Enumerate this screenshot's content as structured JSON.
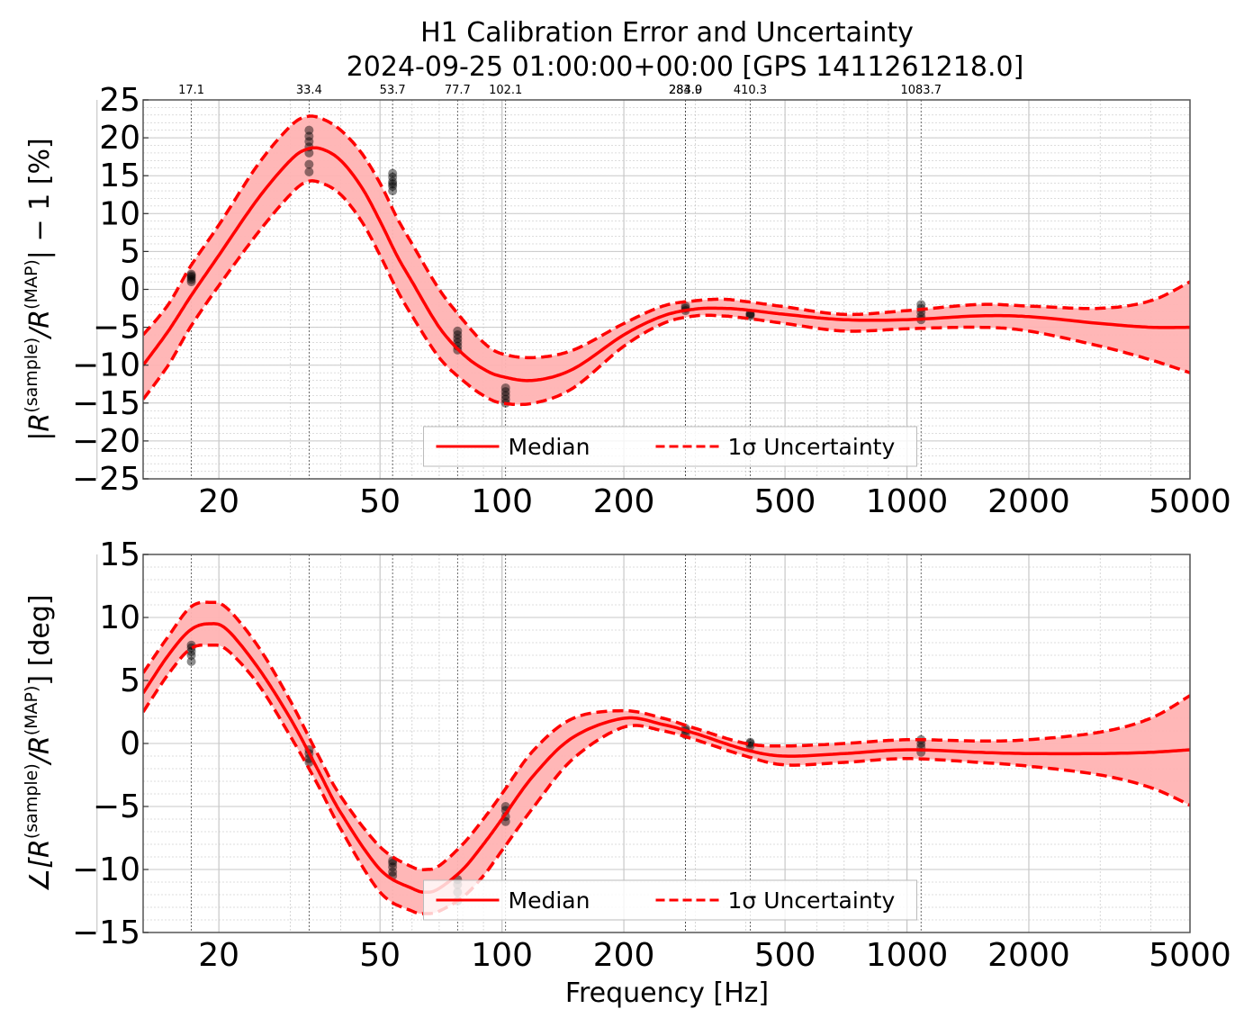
{
  "figure": {
    "title_line1": "H1 Calibration Error and Uncertainty",
    "title_line2": "2024-09-25 01:00:00+00:00 [GPS 1411261218.0]",
    "xlabel": "Frequency [Hz]"
  },
  "colors": {
    "median": "#ff0000",
    "band": "#ffb3b3",
    "points": "#000000",
    "grid": "#bbbbbb"
  },
  "chart_data": [
    {
      "type": "line",
      "panel": "magnitude",
      "ylabel_parts": [
        "|R",
        "(sample)",
        "/R",
        "(MAP)",
        "| − 1 [%]"
      ],
      "xscale": "log",
      "xlim": [
        13,
        5000
      ],
      "ylim": [
        -25,
        25
      ],
      "x_ticks": [
        "20",
        "50",
        "100",
        "200",
        "500",
        "1000",
        "2000",
        "5000"
      ],
      "x_tick_values": [
        20,
        50,
        100,
        200,
        500,
        1000,
        2000,
        5000
      ],
      "y_ticks": [
        -25,
        -20,
        -15,
        -10,
        -5,
        0,
        5,
        10,
        15,
        20,
        25
      ],
      "y_tick_labels": [
        "−25",
        "−20",
        "−15",
        "−10",
        "−5",
        "0",
        "5",
        "10",
        "15",
        "20",
        "25"
      ],
      "grid": true,
      "legend": {
        "placement": "lower-center",
        "median_label": "Median",
        "uncertainty_label": "1σ Uncertainty"
      },
      "measurement_freqs": [
        17.1,
        33.4,
        53.7,
        77.7,
        102.1,
        283.9,
        284.0,
        410.3,
        1083.7
      ],
      "measurement_freq_labels": [
        "17.1",
        "33.4",
        "53.7",
        "77.7",
        "102.1",
        "283.9",
        "284.0",
        "410.3",
        "1083.7"
      ],
      "series": [
        {
          "name": "Median",
          "x": [
            13,
            15,
            17,
            20,
            25,
            30,
            33,
            36,
            40,
            45,
            50,
            55,
            60,
            70,
            80,
            90,
            100,
            120,
            150,
            200,
            250,
            300,
            350,
            400,
            500,
            700,
            1000,
            1500,
            2000,
            3000,
            4000,
            5000
          ],
          "y": [
            -10,
            -5.5,
            -1,
            4.5,
            12,
            17,
            18.5,
            18.5,
            17,
            13.5,
            9,
            4.5,
            1,
            -5,
            -8.5,
            -10.5,
            -11.5,
            -12,
            -10.5,
            -6,
            -3.5,
            -2.6,
            -2.5,
            -2.7,
            -3.3,
            -4,
            -4,
            -3.5,
            -3.6,
            -4.5,
            -5,
            -5
          ]
        },
        {
          "name": "1σ Uncertainty (upper)",
          "x": [
            13,
            15,
            17,
            20,
            25,
            30,
            33,
            36,
            40,
            45,
            50,
            55,
            60,
            70,
            80,
            90,
            100,
            120,
            150,
            200,
            250,
            300,
            350,
            400,
            500,
            700,
            1000,
            1500,
            2000,
            3000,
            4000,
            5000
          ],
          "y": [
            -6,
            -2,
            3,
            8.5,
            16.5,
            21.5,
            22.8,
            22.5,
            21,
            18,
            14,
            9.5,
            6,
            0,
            -4,
            -7,
            -8.5,
            -9,
            -8,
            -4.5,
            -2.2,
            -1.5,
            -1.3,
            -1.6,
            -2.3,
            -3.3,
            -2.8,
            -2,
            -2.2,
            -2.5,
            -1.5,
            1
          ]
        },
        {
          "name": "1σ Uncertainty (lower)",
          "x": [
            13,
            15,
            17,
            20,
            25,
            30,
            33,
            36,
            40,
            45,
            50,
            55,
            60,
            70,
            80,
            90,
            100,
            120,
            150,
            200,
            250,
            300,
            350,
            400,
            500,
            700,
            1000,
            1500,
            2000,
            3000,
            4000,
            5000
          ],
          "y": [
            -14.5,
            -10,
            -5,
            0.5,
            7.5,
            12.5,
            14.2,
            14,
            12.5,
            9,
            4.5,
            0,
            -3.5,
            -9,
            -12,
            -14,
            -15,
            -15,
            -13,
            -7.5,
            -4.5,
            -3.5,
            -3.5,
            -3.8,
            -4.5,
            -5.5,
            -5.2,
            -5,
            -5.5,
            -7.5,
            -9.3,
            -11
          ]
        }
      ],
      "scatter": [
        {
          "x": 17.1,
          "y": [
            1,
            1.3,
            1.6,
            2,
            1.8
          ]
        },
        {
          "x": 33.4,
          "y": [
            15.5,
            16.5,
            18,
            18.8,
            19.5,
            20.2,
            21
          ]
        },
        {
          "x": 53.7,
          "y": [
            13,
            13.6,
            14.2,
            14.8,
            15.3,
            13.9
          ]
        },
        {
          "x": 77.7,
          "y": [
            -8,
            -7.5,
            -7,
            -6.5,
            -6,
            -5.5
          ]
        },
        {
          "x": 102.1,
          "y": [
            -15,
            -14.5,
            -14,
            -13.5,
            -13
          ]
        },
        {
          "x": 283.9,
          "y": [
            -2.5,
            -2.8,
            -2.2
          ]
        },
        {
          "x": 410.3,
          "y": [
            -3.2,
            -3.5,
            -3.3
          ]
        },
        {
          "x": 1083.7,
          "y": [
            -4,
            -3.6,
            -3,
            -2.5,
            -2
          ]
        }
      ]
    },
    {
      "type": "line",
      "panel": "phase",
      "ylabel_parts": [
        "∠[R",
        "(sample)",
        "/R",
        "(MAP)",
        "] [deg]"
      ],
      "xscale": "log",
      "xlim": [
        13,
        5000
      ],
      "ylim": [
        -15,
        15
      ],
      "x_ticks": [
        "20",
        "50",
        "100",
        "200",
        "500",
        "1000",
        "2000",
        "5000"
      ],
      "x_tick_values": [
        20,
        50,
        100,
        200,
        500,
        1000,
        2000,
        5000
      ],
      "y_ticks": [
        -15,
        -10,
        -5,
        0,
        5,
        10,
        15
      ],
      "y_tick_labels": [
        "−15",
        "−10",
        "−5",
        "0",
        "5",
        "10",
        "15"
      ],
      "grid": true,
      "legend": {
        "placement": "lower-center",
        "median_label": "Median",
        "uncertainty_label": "1σ Uncertainty"
      },
      "measurement_freqs": [
        17.1,
        33.4,
        53.7,
        77.7,
        102.1,
        283.9,
        284.0,
        410.3,
        1083.7
      ],
      "series": [
        {
          "name": "Median",
          "x": [
            13,
            15,
            17,
            19,
            21,
            25,
            30,
            35,
            40,
            50,
            60,
            65,
            70,
            80,
            90,
            100,
            120,
            150,
            200,
            250,
            300,
            400,
            500,
            700,
            1000,
            1500,
            2000,
            3000,
            4000,
            5000
          ],
          "y": [
            4,
            7,
            9,
            9.5,
            9,
            6,
            2,
            -2,
            -5.5,
            -10,
            -11.5,
            -11.8,
            -11.5,
            -10,
            -8,
            -6,
            -2.5,
            0.5,
            2,
            1.5,
            0.8,
            -0.5,
            -1,
            -0.8,
            -0.5,
            -0.7,
            -0.8,
            -0.8,
            -0.7,
            -0.5
          ]
        },
        {
          "name": "1σ Uncertainty (upper)",
          "x": [
            13,
            15,
            17,
            19,
            21,
            25,
            30,
            35,
            40,
            50,
            60,
            65,
            70,
            80,
            90,
            100,
            120,
            150,
            200,
            250,
            300,
            400,
            500,
            700,
            1000,
            1500,
            2000,
            3000,
            4000,
            5000
          ],
          "y": [
            5.6,
            8.5,
            10.8,
            11.2,
            10.7,
            7.7,
            3.4,
            -0.8,
            -4.2,
            -8.2,
            -9.8,
            -10,
            -9.7,
            -8,
            -6,
            -4,
            -0.5,
            2,
            2.6,
            2,
            1.2,
            0,
            -0.2,
            0,
            0.3,
            0.2,
            0.3,
            0.9,
            2,
            3.8
          ]
        },
        {
          "name": "1σ Uncertainty (lower)",
          "x": [
            13,
            15,
            17,
            19,
            21,
            25,
            30,
            35,
            40,
            50,
            60,
            65,
            70,
            80,
            90,
            100,
            120,
            150,
            200,
            250,
            300,
            400,
            500,
            700,
            1000,
            1500,
            2000,
            3000,
            4000,
            5000
          ],
          "y": [
            2.5,
            5.5,
            7.5,
            7.8,
            7.4,
            4.7,
            0.6,
            -3.2,
            -6.8,
            -11.8,
            -13.3,
            -13.5,
            -13.3,
            -12.2,
            -10.5,
            -8.5,
            -5,
            -1.2,
            1.3,
            1,
            0.3,
            -1,
            -1.7,
            -1.5,
            -1.2,
            -1.5,
            -1.8,
            -2.5,
            -3.5,
            -4.9
          ]
        }
      ],
      "scatter": [
        {
          "x": 17.1,
          "y": [
            6.5,
            7,
            7.3,
            7.6,
            7.8
          ]
        },
        {
          "x": 33.4,
          "y": [
            -1.5,
            -1.2,
            -0.8,
            -0.5
          ]
        },
        {
          "x": 53.7,
          "y": [
            -10.5,
            -10.2,
            -9.8,
            -9.5,
            -9.3
          ]
        },
        {
          "x": 77.7,
          "y": [
            -12.5,
            -11.8,
            -11.2,
            -10.8
          ]
        },
        {
          "x": 102.1,
          "y": [
            -6.2,
            -5.8,
            -5.3,
            -5
          ]
        },
        {
          "x": 283.9,
          "y": [
            0.7,
            1,
            1.2
          ]
        },
        {
          "x": 410.3,
          "y": [
            -0.2,
            0,
            0.1
          ]
        },
        {
          "x": 1083.7,
          "y": [
            -0.7,
            -0.3,
            0,
            0.3
          ]
        }
      ]
    }
  ]
}
